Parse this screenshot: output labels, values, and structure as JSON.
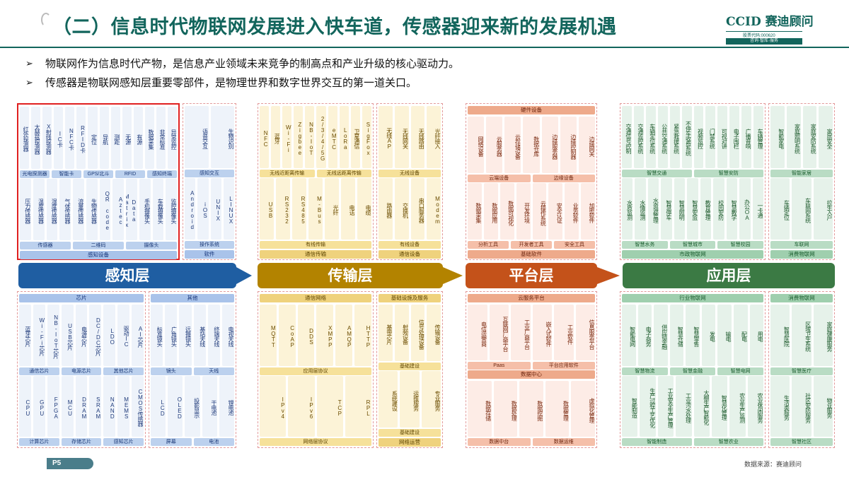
{
  "header": {
    "title": "（二）信息时代物联网发展进入快车道，传感器迎来新的发展机遇",
    "logo": "CCID 赛迪顾问",
    "logo_stock": "股票代码:000620",
    "logo_sub": "咨询·智库·服务"
  },
  "bullets": [
    "物联网作为信息时代产物，是信息产业领域未来竞争的制高点和产业升级的核心驱动力。",
    "传感器是物联网感知层重要零部件，是物理世界和数字世界交互的第一道关口。"
  ],
  "layers": [
    {
      "name": "感知层"
    },
    {
      "name": "传输层"
    },
    {
      "name": "平台层"
    },
    {
      "name": "应用层"
    }
  ],
  "top_panels": [
    {
      "color": "b",
      "highlight": true,
      "rows": [
        {
          "cols": [
            "红外探测器",
            "太赫兹探测器",
            "X射线探测器",
            "IC卡",
            "NFC卡",
            "RFID卡",
            "定位",
            "导航",
            "测距",
            "无源",
            "有源",
            "数据采集",
            "非常标准",
            "异常监控"
          ],
          "labels": [
            "光电探测器",
            "智能卡",
            "GPS/北斗",
            "RFID",
            "感知终端"
          ]
        },
        {
          "cols": [
            "压力传感器",
            "温度传感器",
            "湿度传感器",
            "气体传感器",
            "流量传感器",
            "生物传感器",
            "QR code",
            "Aztec",
            "Data Matrix",
            "手机摄像头",
            "车载摄像头",
            "监控摄像头"
          ],
          "labels": [
            "传感器",
            "二维码",
            "摄像头"
          ]
        }
      ],
      "bar": "感知设备"
    },
    {
      "color": "b",
      "highlight": false,
      "rows": [
        {
          "cols": [
            "语音交互",
            "生物识别"
          ],
          "labels": [
            "感知交互"
          ]
        },
        {
          "cols": [
            "Android",
            "iOS",
            "UNIX",
            "LINUX"
          ],
          "labels": [
            "操作系统"
          ]
        }
      ],
      "bar": "软件"
    },
    {
      "color": "y",
      "highlight": false,
      "rows": [
        {
          "cols": [
            "NFC",
            "蓝牙",
            "Wi-Fi",
            "Zigbee",
            "NB-IoT",
            "2/3/4/5G",
            "eMTC",
            "LoRa",
            "卫星通信",
            "SigFox"
          ],
          "labels": [
            "无线近距离传输",
            "无线远距离传输"
          ]
        },
        {
          "cols": [
            "USB",
            "RS232",
            "RS485",
            "M-Bus",
            "光纤",
            "电话",
            "电缆"
          ],
          "labels": [
            "有线传输"
          ]
        }
      ],
      "bar": "通信传输"
    },
    {
      "color": "y",
      "highlight": false,
      "rows": [
        {
          "cols": [
            "无线AP",
            "无线网关",
            "无线路由",
            "光纤接入"
          ],
          "labels": [
            "无线设备"
          ]
        },
        {
          "cols": [
            "路由器",
            "交换机",
            "串口服务器",
            "Modem"
          ],
          "labels": [
            "有线设备"
          ]
        }
      ],
      "bar": "通信设备"
    },
    {
      "color": "o",
      "highlight": false,
      "rows": [
        {
          "cols": [
            "网络设备",
            "云服务器",
            "云存储设备",
            "数据仓库",
            "边缘服务器",
            "边缘控制器",
            "边缘网关"
          ],
          "labels": [
            "云端设备",
            "边缘设备"
          ]
        },
        {
          "cols": [
            "数据采集",
            "数据应用",
            "数据可视化",
            "开发环境",
            "云操作系统",
            "安全认证",
            "业务软件",
            "加密软件"
          ],
          "labels": [
            "分析工具",
            "开发者工具",
            "安全工具"
          ]
        }
      ],
      "bar": "基础软件",
      "top_bar": "硬件设备"
    },
    {
      "color": "g",
      "highlight": false,
      "rows": [
        {
          "cols": [
            "交通信号控制",
            "交通监控系统",
            "车辆定位系统",
            "公共交通系统",
            "紧急救援系统",
            "不停车收费系统",
            "视频监控",
            "门禁系统",
            "可视对讲",
            "电子围栏",
            "广播音响",
            "车辆管理"
          ],
          "labels": [
            "智慧交通",
            "智慧安防"
          ]
        },
        {
          "cols": [
            "水质监测",
            "水情监测",
            "水资源管理",
            "智慧停车",
            "智慧照明",
            "智慧安监",
            "教育管理",
            "校园安防",
            "智慧教学",
            "办公OA",
            "一卡通"
          ],
          "labels": [
            "智慧水务",
            "智慧城市",
            "智慧校园"
          ]
        }
      ],
      "bar": "市政物联网"
    },
    {
      "color": "g",
      "highlight": false,
      "rows": [
        {
          "cols": [
            "智能家电",
            "家庭照明系统",
            "家庭安防系统",
            "家居安全"
          ],
          "labels": [
            "智能家居"
          ]
        },
        {
          "cols": [
            "车辆定位",
            "车联网系统",
            "拉生入户"
          ],
          "labels": [
            "车联网"
          ]
        }
      ],
      "bar": "消费物联网"
    }
  ],
  "bottom_panels": [
    {
      "color": "b",
      "top_bar": "芯片",
      "rows": [
        {
          "cols": [
            "蓝牙芯片",
            "Wi-Fi芯片",
            "NB-IoT芯片",
            "USB芯片",
            "电源芯片",
            "DC/DC芯片",
            "LDO",
            "驱动IC",
            "AI芯片"
          ],
          "labels": [
            "通信芯片",
            "电源芯片",
            "其他芯片"
          ]
        },
        {
          "cols": [
            "CPU",
            "GPU",
            "FPGA",
            "MCU",
            "DRAM",
            "SRAM",
            "NAND",
            "MEMS",
            "CMOS传感器"
          ],
          "labels": [
            "计算芯片",
            "存储芯片",
            "感知芯片"
          ]
        }
      ]
    },
    {
      "color": "b",
      "top_bar": "其他",
      "rows": [
        {
          "cols": [
            "标准镜头",
            "广角镜头",
            "远摄镜头",
            "基站天线",
            "终端天线",
            "电视天线"
          ],
          "labels": [
            "镜头",
            "天线"
          ]
        },
        {
          "cols": [
            "LCD",
            "OLED",
            "投影显示",
            "干电池",
            "锂电池"
          ],
          "labels": [
            "屏幕",
            "电池"
          ]
        }
      ]
    },
    {
      "color": "y",
      "top_bar": "通信网络",
      "rows": [
        {
          "cols": [
            "MQTT",
            "CoAP",
            "DDS",
            "XMPP",
            "AMQP",
            "HTTP"
          ],
          "labels": [
            "应用层协议"
          ]
        },
        {
          "cols": [
            "IPv4",
            "IPv6",
            "TCP",
            "RPL"
          ],
          "labels": [
            "网络层协议"
          ]
        }
      ]
    },
    {
      "color": "y",
      "top_bar": "基础设施及服务",
      "rows": [
        {
          "cols": [
            "基带芯片",
            "射频设备",
            "信号处理设备",
            "传输设备"
          ],
          "labels": [
            "基础建设"
          ]
        },
        {
          "cols": [
            "系统建设",
            "运维服务",
            "专业服务"
          ],
          "labels": [
            "基础建设"
          ]
        }
      ],
      "bar": "网络运营"
    },
    {
      "color": "o",
      "top_bar": "云服务平台",
      "rows": [
        {
          "cols": [
            "电信运营商",
            "互联网厂商平台",
            "工业厂商平台",
            "嵌入式软件",
            "工业软件",
            "信息服务平台"
          ],
          "labels": [
            "Paas",
            "平台应用软件"
          ]
        },
        {
          "cols": [
            "数据存储",
            "数据处理",
            "数据挖掘",
            "数据管理",
            "虚拟化管理"
          ],
          "labels": [
            "数据中台",
            "数据运维"
          ]
        }
      ],
      "mid_bar": "数据中心"
    },
    {
      "color": "g",
      "top_bar": "行业物联网",
      "rows": [
        {
          "cols": [
            "智能电网",
            "电子商务",
            "供应链金融",
            "智慧仓储",
            "智慧零售",
            "发电",
            "输电",
            "配电",
            "用电"
          ],
          "labels": [
            "智慧物流",
            "智慧金融",
            "智慧电网"
          ]
        },
        {
          "cols": [
            "智能制造",
            "生产过程工艺优化",
            "工业安全生产管理",
            "工业污水处理",
            "大棚生产智能化",
            "智慧化管理",
            "农业生产监测",
            "农业休闲服务"
          ],
          "labels": [
            "智能制造",
            "智慧农业"
          ]
        }
      ]
    },
    {
      "color": "g",
      "top_bar": "消费物联网",
      "rows": [
        {
          "cols": [
            "智慧医院",
            "区域卫生系统",
            "家庭健康服务"
          ],
          "labels": [
            "智慧医疗"
          ]
        },
        {
          "cols": [
            "生活类服务",
            "社区安防服务",
            "物业服务"
          ],
          "labels": [
            "智慧社区"
          ]
        }
      ]
    }
  ],
  "footer": {
    "page": "P5",
    "source": "数据来源：赛迪顾问"
  }
}
